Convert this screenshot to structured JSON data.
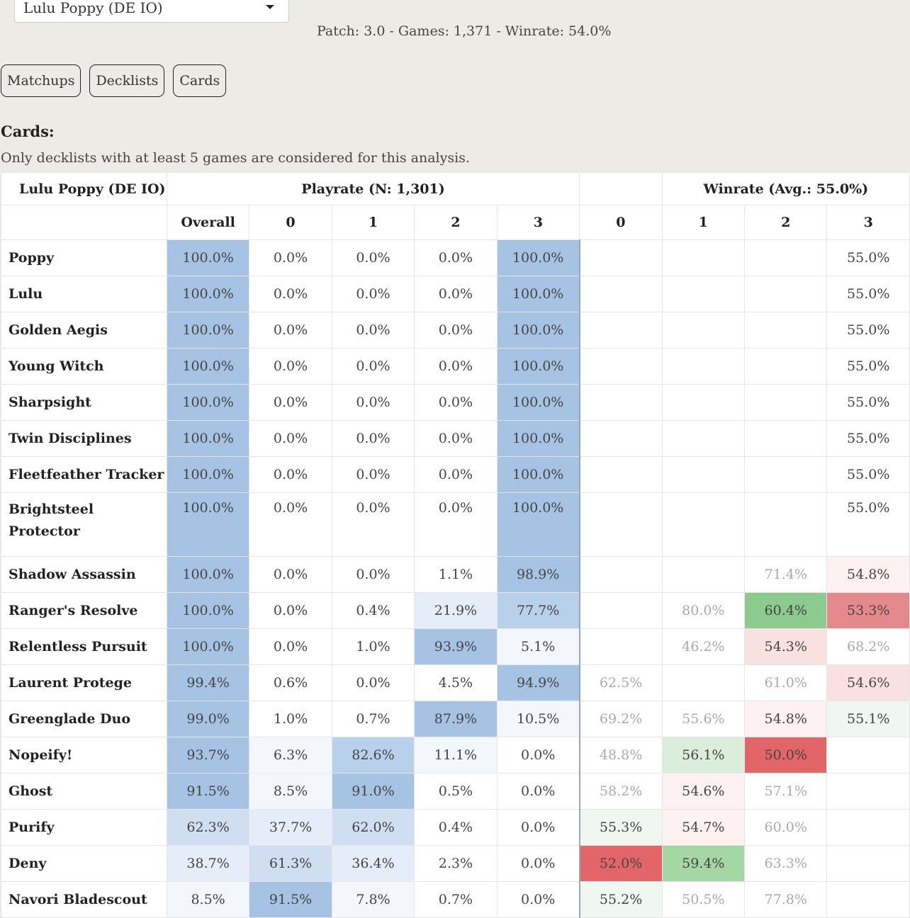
{
  "deck_select": {
    "value": "Lulu Poppy (DE IO)"
  },
  "patch_info": "Patch: 3.0 - Games: 1,371 - Winrate: 54.0%",
  "tabs": [
    {
      "label": "Matchups"
    },
    {
      "label": "Decklists"
    },
    {
      "label": "Cards"
    }
  ],
  "section": {
    "title": "Cards:",
    "note": "Only decklists with at least 5 games are considered for this analysis."
  },
  "table": {
    "corner": "Lulu Poppy (DE IO)",
    "playrate_header": "Playrate (N: 1,301)",
    "winrate_header": "Winrate (Avg.: 55.0%)",
    "sub_headers": [
      "Overall",
      "0",
      "1",
      "2",
      "3",
      "0",
      "1",
      "2",
      "3"
    ],
    "rows": [
      {
        "name": "Poppy",
        "cells": [
          "100.0%",
          "0.0%",
          "0.0%",
          "0.0%",
          "100.0%",
          "",
          "",
          "",
          "55.0%"
        ]
      },
      {
        "name": "Lulu",
        "cells": [
          "100.0%",
          "0.0%",
          "0.0%",
          "0.0%",
          "100.0%",
          "",
          "",
          "",
          "55.0%"
        ]
      },
      {
        "name": "Golden Aegis",
        "cells": [
          "100.0%",
          "0.0%",
          "0.0%",
          "0.0%",
          "100.0%",
          "",
          "",
          "",
          "55.0%"
        ]
      },
      {
        "name": "Young Witch",
        "cells": [
          "100.0%",
          "0.0%",
          "0.0%",
          "0.0%",
          "100.0%",
          "",
          "",
          "",
          "55.0%"
        ]
      },
      {
        "name": "Sharpsight",
        "cells": [
          "100.0%",
          "0.0%",
          "0.0%",
          "0.0%",
          "100.0%",
          "",
          "",
          "",
          "55.0%"
        ]
      },
      {
        "name": "Twin Disciplines",
        "cells": [
          "100.0%",
          "0.0%",
          "0.0%",
          "0.0%",
          "100.0%",
          "",
          "",
          "",
          "55.0%"
        ]
      },
      {
        "name": "Fleetfeather Tracker",
        "cells": [
          "100.0%",
          "0.0%",
          "0.0%",
          "0.0%",
          "100.0%",
          "",
          "",
          "",
          "55.0%"
        ]
      },
      {
        "name": "Brightsteel Protector",
        "cells": [
          "100.0%",
          "0.0%",
          "0.0%",
          "0.0%",
          "100.0%",
          "",
          "",
          "",
          "55.0%"
        ]
      },
      {
        "name": "Shadow Assassin",
        "cells": [
          "100.0%",
          "0.0%",
          "0.0%",
          "1.1%",
          "98.9%",
          "",
          "",
          "71.4%",
          "54.8%"
        ]
      },
      {
        "name": "Ranger's Resolve",
        "cells": [
          "100.0%",
          "0.0%",
          "0.4%",
          "21.9%",
          "77.7%",
          "",
          "80.0%",
          "60.4%",
          "53.3%"
        ]
      },
      {
        "name": "Relentless Pursuit",
        "cells": [
          "100.0%",
          "0.0%",
          "1.0%",
          "93.9%",
          "5.1%",
          "",
          "46.2%",
          "54.3%",
          "68.2%"
        ]
      },
      {
        "name": "Laurent Protege",
        "cells": [
          "99.4%",
          "0.6%",
          "0.0%",
          "4.5%",
          "94.9%",
          "62.5%",
          "",
          "61.0%",
          "54.6%"
        ]
      },
      {
        "name": "Greenglade Duo",
        "cells": [
          "99.0%",
          "1.0%",
          "0.7%",
          "87.9%",
          "10.5%",
          "69.2%",
          "55.6%",
          "54.8%",
          "55.1%"
        ]
      },
      {
        "name": "Nopeify!",
        "cells": [
          "93.7%",
          "6.3%",
          "82.6%",
          "11.1%",
          "0.0%",
          "48.8%",
          "56.1%",
          "50.0%",
          ""
        ]
      },
      {
        "name": "Ghost",
        "cells": [
          "91.5%",
          "8.5%",
          "91.0%",
          "0.5%",
          "0.0%",
          "58.2%",
          "54.6%",
          "57.1%",
          ""
        ]
      },
      {
        "name": "Purify",
        "cells": [
          "62.3%",
          "37.7%",
          "62.0%",
          "0.4%",
          "0.0%",
          "55.3%",
          "54.7%",
          "60.0%",
          ""
        ]
      },
      {
        "name": "Deny",
        "cells": [
          "38.7%",
          "61.3%",
          "36.4%",
          "2.3%",
          "0.0%",
          "52.0%",
          "59.4%",
          "63.3%",
          ""
        ]
      },
      {
        "name": "Navori Bladescout",
        "cells": [
          "8.5%",
          "91.5%",
          "7.8%",
          "0.7%",
          "0.0%",
          "55.2%",
          "50.5%",
          "77.8%",
          ""
        ]
      }
    ]
  }
}
